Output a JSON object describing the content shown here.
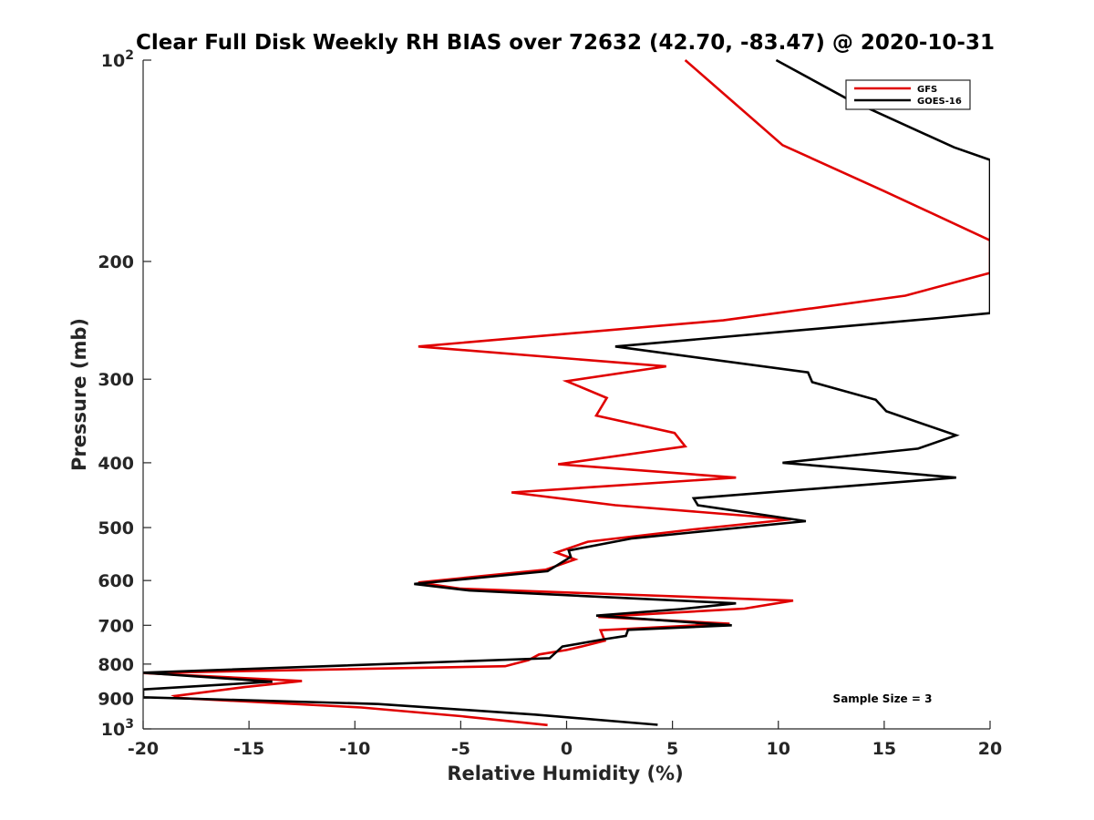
{
  "chart_data": {
    "type": "line",
    "title": "Clear Full Disk Weekly RH BIAS over 72632 (42.70, -83.47) @ 2020-10-31",
    "xlabel": "Relative Humidity (%)",
    "ylabel": "Pressure (mb)",
    "xlim": [
      -20,
      20
    ],
    "ylim": [
      100,
      1000
    ],
    "y_scale": "log",
    "y_reversed": true,
    "x_ticks": [
      "-20",
      "-15",
      "-10",
      "-5",
      "0",
      "5",
      "10",
      "15",
      "20"
    ],
    "y_ticks": [
      {
        "value": 100,
        "base": "10",
        "exp": "2"
      },
      {
        "value": 200,
        "label": "200"
      },
      {
        "value": 300,
        "label": "300"
      },
      {
        "value": 400,
        "label": "400"
      },
      {
        "value": 500,
        "label": "500"
      },
      {
        "value": 600,
        "label": "600"
      },
      {
        "value": 700,
        "label": "700"
      },
      {
        "value": 800,
        "label": "800"
      },
      {
        "value": 900,
        "label": "900"
      },
      {
        "value": 1000,
        "base": "10",
        "exp": "3"
      }
    ],
    "legend_position": "top-right",
    "grid": false,
    "annotation": "Sample Size = 3",
    "series": [
      {
        "name": "GFS",
        "color": "#e00000",
        "points": [
          [
            5.6,
            100
          ],
          [
            7.8,
            115
          ],
          [
            10.2,
            134
          ],
          [
            15.0,
            157
          ],
          [
            20.0,
            186
          ],
          [
            20.0,
            208
          ],
          [
            16.0,
            225
          ],
          [
            7.4,
            245
          ],
          [
            -7.0,
            268
          ],
          [
            4.7,
            287
          ],
          [
            0.0,
            302
          ],
          [
            1.9,
            320
          ],
          [
            1.4,
            340
          ],
          [
            5.1,
            361
          ],
          [
            5.6,
            378
          ],
          [
            -0.4,
            402
          ],
          [
            8.0,
            421
          ],
          [
            -2.6,
            443
          ],
          [
            2.3,
            463
          ],
          [
            10.6,
            486
          ],
          [
            6.0,
            503
          ],
          [
            1.0,
            525
          ],
          [
            -0.5,
            545
          ],
          [
            0.4,
            558
          ],
          [
            -1.0,
            578
          ],
          [
            -7.0,
            604
          ],
          [
            -5.0,
            617
          ],
          [
            10.7,
            643
          ],
          [
            8.4,
            661
          ],
          [
            1.5,
            680
          ],
          [
            7.7,
            696
          ],
          [
            1.6,
            712
          ],
          [
            1.8,
            738
          ],
          [
            0.7,
            753
          ],
          [
            0.0,
            762
          ],
          [
            -1.3,
            774
          ],
          [
            -1.8,
            789
          ],
          [
            -2.9,
            806
          ],
          [
            -20.0,
            825
          ],
          [
            -12.5,
            848
          ],
          [
            -15.2,
            866
          ],
          [
            -18.5,
            893
          ],
          [
            -18.3,
            899
          ],
          [
            -9.7,
            929
          ],
          [
            -5.0,
            957
          ],
          [
            -0.9,
            987
          ]
        ]
      },
      {
        "name": "GOES-16",
        "color": "#000000",
        "points": [
          [
            9.9,
            100
          ],
          [
            13.2,
            114
          ],
          [
            18.3,
            135
          ],
          [
            20.0,
            141
          ],
          [
            20.0,
            239
          ],
          [
            17.6,
            243
          ],
          [
            2.3,
            268
          ],
          [
            11.4,
            293
          ],
          [
            11.6,
            303
          ],
          [
            14.6,
            322
          ],
          [
            15.1,
            335
          ],
          [
            18.4,
            364
          ],
          [
            16.6,
            381
          ],
          [
            10.2,
            400
          ],
          [
            18.4,
            421
          ],
          [
            6.0,
            452
          ],
          [
            6.2,
            463
          ],
          [
            11.3,
            489
          ],
          [
            3.1,
            519
          ],
          [
            0.1,
            541
          ],
          [
            0.2,
            553
          ],
          [
            -0.9,
            581
          ],
          [
            -7.2,
            607
          ],
          [
            -4.6,
            621
          ],
          [
            8.0,
            649
          ],
          [
            5.4,
            662
          ],
          [
            1.4,
            677
          ],
          [
            7.8,
            700
          ],
          [
            2.9,
            711
          ],
          [
            2.8,
            726
          ],
          [
            1.7,
            735
          ],
          [
            -0.2,
            753
          ],
          [
            -0.8,
            784
          ],
          [
            -20.0,
            824
          ],
          [
            -13.9,
            850
          ],
          [
            -20.0,
            873
          ],
          [
            -20.0,
            897
          ],
          [
            -8.9,
            918
          ],
          [
            -1.5,
            952
          ],
          [
            4.3,
            986
          ]
        ]
      }
    ]
  }
}
